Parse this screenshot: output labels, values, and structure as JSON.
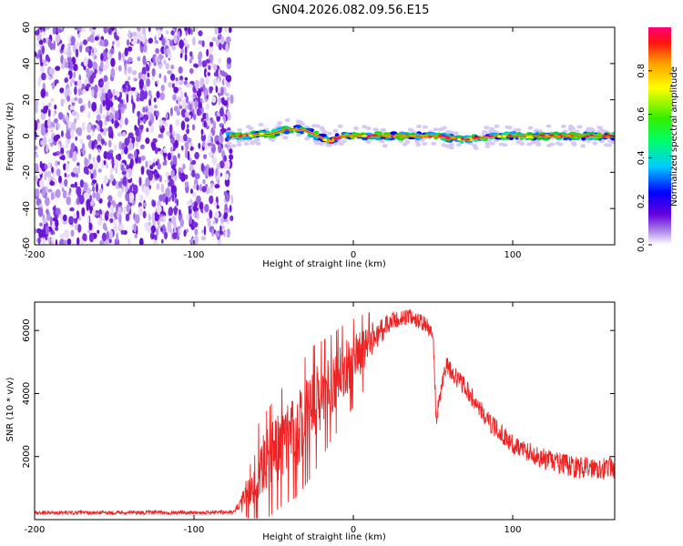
{
  "title": "GN04.2026.082.09.56.E15",
  "chart_data": [
    {
      "type": "heatmap",
      "subtype": "spectrogram",
      "xlabel": "Height of straight line (km)",
      "ylabel": "Frequency (Hz)",
      "xlim": [
        -200,
        164
      ],
      "ylim": [
        -60,
        60
      ],
      "xticks": [
        -200,
        -100,
        0,
        100
      ],
      "yticks": [
        -60,
        -40,
        -20,
        0,
        20,
        40,
        60
      ],
      "noise_region_x": [
        -200,
        -76
      ],
      "signal_start_x": -79,
      "signal_center_track": [
        {
          "x": -78,
          "y": 0
        },
        {
          "x": -70,
          "y": 0
        },
        {
          "x": -60,
          "y": 1
        },
        {
          "x": -52,
          "y": 1
        },
        {
          "x": -45,
          "y": 3
        },
        {
          "x": -38,
          "y": 4
        },
        {
          "x": -30,
          "y": 3
        },
        {
          "x": -22,
          "y": 0
        },
        {
          "x": -15,
          "y": -3
        },
        {
          "x": -8,
          "y": 0
        },
        {
          "x": 0,
          "y": 0
        },
        {
          "x": 50,
          "y": 0
        },
        {
          "x": 70,
          "y": -2
        },
        {
          "x": 90,
          "y": 0
        },
        {
          "x": 164,
          "y": 0
        }
      ],
      "colorbar": {
        "label": "Normalized spectral amplitude",
        "range": [
          0,
          1
        ],
        "ticks": [
          0.0,
          0.2,
          0.4,
          0.6,
          0.8
        ]
      }
    },
    {
      "type": "line",
      "xlabel": "Height of straight line (km)",
      "ylabel": "SNR (10 * v/v)",
      "xlim": [
        -200,
        164
      ],
      "ylim": [
        0,
        6900
      ],
      "xticks": [
        -200,
        -100,
        0,
        100
      ],
      "yticks": [
        2000,
        4000,
        6000
      ],
      "series": [
        {
          "name": "SNR",
          "color": "#ee2222",
          "envelope": [
            {
              "x": -200,
              "base": 220,
              "spread": 120
            },
            {
              "x": -75,
              "base": 230,
              "spread": 120
            },
            {
              "x": -70,
              "base": 600,
              "spread": 400
            },
            {
              "x": -62,
              "base": 1400,
              "spread": 1800
            },
            {
              "x": -55,
              "base": 1800,
              "spread": 2000
            },
            {
              "x": -45,
              "base": 2400,
              "spread": 2200
            },
            {
              "x": -35,
              "base": 2900,
              "spread": 2400
            },
            {
              "x": -25,
              "base": 3600,
              "spread": 2400
            },
            {
              "x": -15,
              "base": 4200,
              "spread": 2000
            },
            {
              "x": -5,
              "base": 4800,
              "spread": 1800
            },
            {
              "x": 5,
              "base": 5300,
              "spread": 1500
            },
            {
              "x": 15,
              "base": 5900,
              "spread": 900
            },
            {
              "x": 25,
              "base": 6300,
              "spread": 600
            },
            {
              "x": 35,
              "base": 6450,
              "spread": 500
            },
            {
              "x": 45,
              "base": 6200,
              "spread": 500
            },
            {
              "x": 50,
              "base": 5900,
              "spread": 500
            },
            {
              "x": 52,
              "base": 3200,
              "spread": 500
            },
            {
              "x": 58,
              "base": 4900,
              "spread": 600
            },
            {
              "x": 70,
              "base": 4200,
              "spread": 600
            },
            {
              "x": 85,
              "base": 3100,
              "spread": 600
            },
            {
              "x": 100,
              "base": 2400,
              "spread": 600
            },
            {
              "x": 120,
              "base": 1900,
              "spread": 700
            },
            {
              "x": 140,
              "base": 1650,
              "spread": 700
            },
            {
              "x": 164,
              "base": 1650,
              "spread": 700
            }
          ]
        }
      ]
    }
  ]
}
